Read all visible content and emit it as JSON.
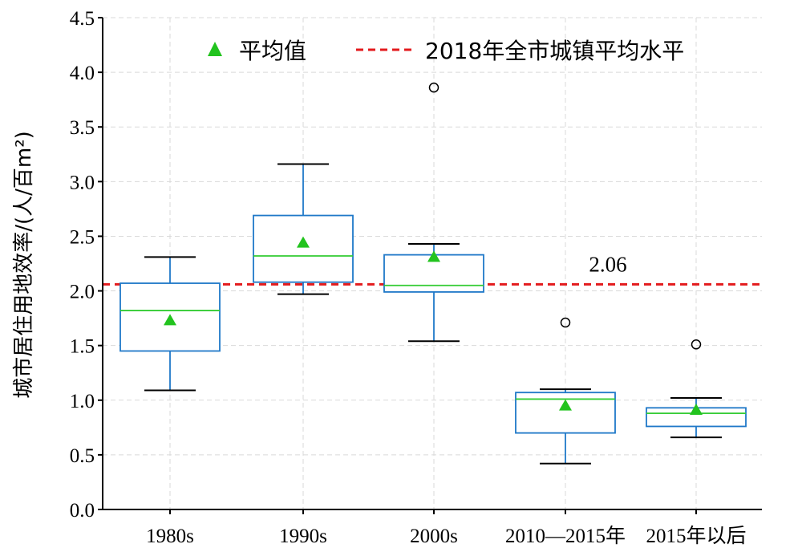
{
  "chart_data": {
    "type": "box",
    "title": "",
    "xlabel": "",
    "ylabel": "城市居住用地效率/(人/百m²)",
    "ylim": [
      0,
      4.5
    ],
    "yticks": [
      "0.0",
      "0.5",
      "1.0",
      "1.5",
      "2.0",
      "2.5",
      "3.0",
      "3.5",
      "4.0",
      "4.5"
    ],
    "grid": true,
    "legend_position": "top",
    "categories": [
      "1980s",
      "1990s",
      "2000s",
      "2010—2015年",
      "2015年以后"
    ],
    "boxes": [
      {
        "whisker_low": 1.09,
        "q1": 1.45,
        "median": 1.82,
        "q3": 2.07,
        "whisker_high": 2.31,
        "mean": 1.73,
        "outliers": []
      },
      {
        "whisker_low": 1.97,
        "q1": 2.08,
        "median": 2.32,
        "q3": 2.69,
        "whisker_high": 3.16,
        "mean": 2.44,
        "outliers": []
      },
      {
        "whisker_low": 1.54,
        "q1": 1.99,
        "median": 2.05,
        "q3": 2.33,
        "whisker_high": 2.43,
        "mean": 2.31,
        "outliers": [
          3.86
        ]
      },
      {
        "whisker_low": 0.42,
        "q1": 0.7,
        "median": 1.01,
        "q3": 1.07,
        "whisker_high": 1.1,
        "mean": 0.95,
        "outliers": [
          1.71
        ]
      },
      {
        "whisker_low": 0.66,
        "q1": 0.76,
        "median": 0.88,
        "q3": 0.93,
        "whisker_high": 1.02,
        "mean": 0.91,
        "outliers": [
          1.51
        ]
      }
    ],
    "reference_line": {
      "value": 2.06,
      "label": "2.06",
      "name": "2018年全市城镇平均水平",
      "color": "#e31a1c"
    },
    "legend": [
      {
        "name": "平均值",
        "marker": "triangle",
        "color": "#22c31e"
      },
      {
        "name": "2018年全市城镇平均水平",
        "marker": "dashed-line",
        "color": "#e31a1c"
      }
    ],
    "colors": {
      "box": "#1f78c8",
      "median": "#33cc33",
      "whisker": "#1f78c8",
      "cap": "#000000",
      "mean": "#22c31e"
    }
  }
}
